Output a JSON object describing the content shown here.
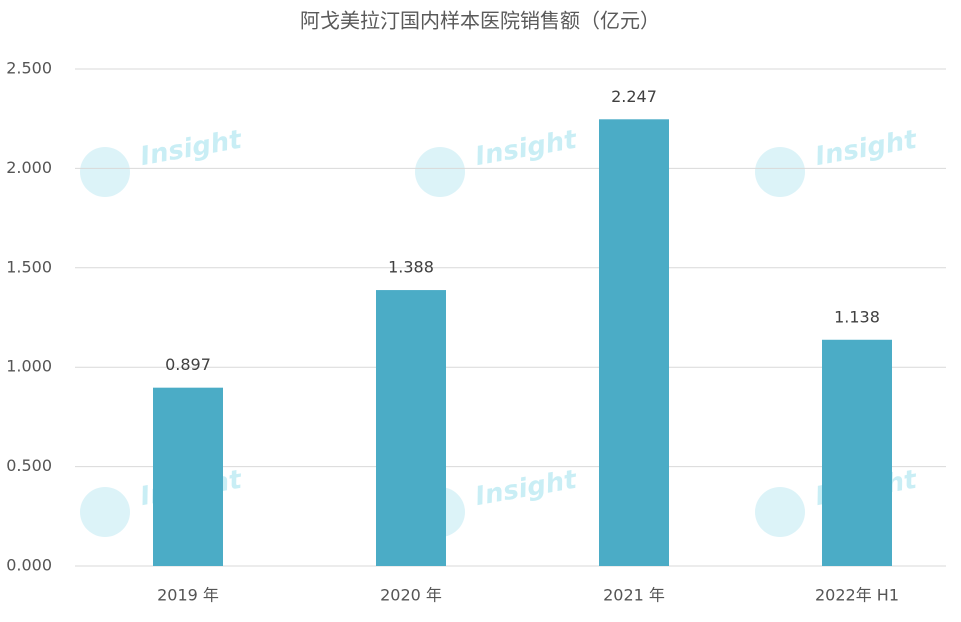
{
  "chart_data": {
    "type": "bar",
    "title": "阿戈美拉汀国内样本医院销售额（亿元）",
    "watermark": "Insight",
    "categories": [
      "2019 年",
      "2020 年",
      "2021 年",
      "2022年 H1"
    ],
    "values": [
      0.897,
      1.388,
      2.247,
      1.138
    ],
    "color": "#4bacc6",
    "ylim": [
      0,
      2.5
    ],
    "yticks": [
      {
        "value": 0,
        "label": "0.000"
      },
      {
        "value": 0.5,
        "label": "0.500"
      },
      {
        "value": 1,
        "label": "1.000"
      },
      {
        "value": 1.5,
        "label": "1.500"
      },
      {
        "value": 2,
        "label": "2.000"
      },
      {
        "value": 2.5,
        "label": "2.500"
      }
    ],
    "grid": true
  }
}
